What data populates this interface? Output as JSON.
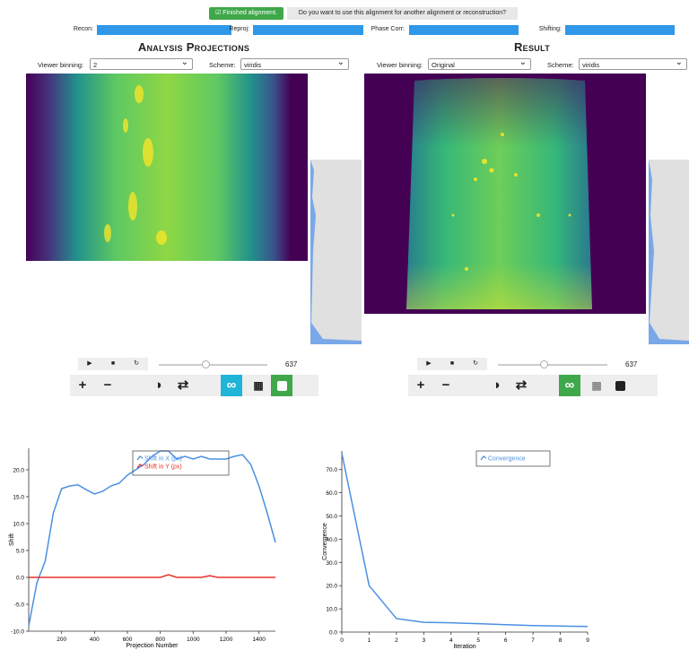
{
  "status": {
    "button": "Finished alignment.",
    "prompt": "Do you want to use this alignment for another alignment or reconstruction?"
  },
  "progress": [
    {
      "label": "Recon:"
    },
    {
      "label": "Reproj:"
    },
    {
      "label": "Phase Corr:"
    },
    {
      "label": "Shifting:"
    }
  ],
  "panels": [
    {
      "title": "Analysis Projections",
      "binning_label": "Viewer binning:",
      "binning": "2",
      "scheme_label": "Scheme:",
      "scheme": "viridis",
      "frame": "637"
    },
    {
      "title": "Result",
      "binning_label": "Viewer binning:",
      "binning": "Original",
      "scheme_label": "Scheme:",
      "scheme": "viridis",
      "frame": "637"
    }
  ],
  "chart_data": [
    {
      "type": "line",
      "xlabel": "Projection Number",
      "ylabel": "Shift",
      "x": [
        0,
        50,
        100,
        150,
        200,
        250,
        300,
        350,
        400,
        450,
        500,
        550,
        600,
        650,
        700,
        750,
        800,
        850,
        900,
        950,
        1000,
        1050,
        1100,
        1150,
        1200,
        1250,
        1300,
        1350,
        1400,
        1450,
        1500
      ],
      "series": [
        {
          "name": "Shift in X (px)",
          "color": "#4a90e2",
          "values": [
            -9,
            -1,
            3,
            12,
            16.5,
            17,
            17.2,
            16.3,
            15.5,
            16,
            17,
            17.5,
            19,
            20,
            21,
            22.5,
            23.5,
            23.5,
            22,
            22.5,
            22,
            22.5,
            22,
            22,
            22,
            22.5,
            22.8,
            21,
            17,
            12,
            6.5
          ]
        },
        {
          "name": "Shift in Y (px)",
          "color": "#e8312a",
          "values": [
            0,
            0,
            0,
            0,
            0,
            0,
            0,
            0,
            0,
            0,
            0,
            0,
            0,
            0,
            0,
            0,
            0,
            0.5,
            0,
            0,
            0,
            0,
            0.3,
            0,
            0,
            0,
            0,
            0,
            0,
            0,
            0
          ]
        }
      ],
      "xlim": [
        0,
        1500
      ],
      "xticks": [
        200,
        400,
        600,
        800,
        1000,
        1200,
        1400
      ],
      "ylim": [
        -10,
        24
      ],
      "yticks": [
        {
          "value": -10,
          "label": "-10.0"
        },
        {
          "value": -5,
          "label": "-5.0"
        },
        {
          "value": 0,
          "label": "0.0"
        },
        {
          "value": 5,
          "label": "5.0"
        },
        {
          "value": 10,
          "label": "10.0"
        },
        {
          "value": 15,
          "label": "15.0"
        },
        {
          "value": 20,
          "label": "20.0"
        }
      ]
    },
    {
      "type": "line",
      "xlabel": "Iteration",
      "ylabel": "Convergence",
      "x": [
        0,
        1,
        2,
        3,
        4,
        5,
        6,
        7,
        8,
        9
      ],
      "series": [
        {
          "name": "Convergence",
          "color": "#4a90e2",
          "values": [
            77,
            20,
            5.8,
            4.2,
            4.0,
            3.6,
            3.2,
            2.8,
            2.6,
            2.4
          ]
        }
      ],
      "xlim": [
        0,
        9
      ],
      "xticks": [
        0,
        1,
        2,
        3,
        4,
        5,
        6,
        7,
        8,
        9
      ],
      "ylim": [
        0,
        78
      ],
      "yticks": [
        {
          "value": 0,
          "label": "0.0"
        },
        {
          "value": 10,
          "label": "10.0"
        },
        {
          "value": 20,
          "label": "20.0"
        },
        {
          "value": 30,
          "label": "30.0"
        },
        {
          "value": 40,
          "label": "40.0"
        },
        {
          "value": 50,
          "label": "50.0"
        },
        {
          "value": 60,
          "label": "60.0"
        },
        {
          "value": 70,
          "label": "70.0"
        }
      ]
    }
  ]
}
